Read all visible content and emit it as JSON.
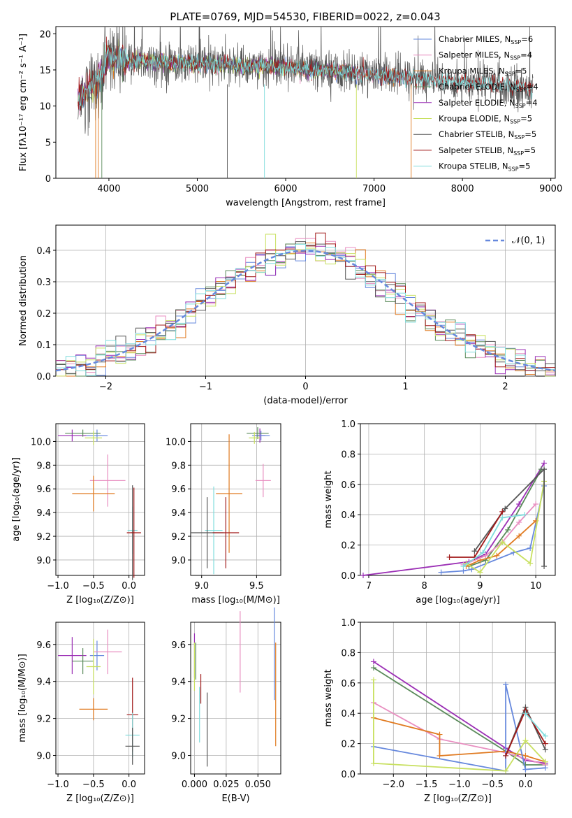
{
  "chart_data": [
    {
      "type": "line",
      "title": "PLATE=0769, MJD=54530, FIBERID=0022, z=0.043",
      "xlabel": "wavelength [Angstrom, rest frame]",
      "ylabel": "Flux [fλ10⁻¹⁷ erg cm⁻² s⁻¹ A⁻¹]",
      "xlim": [
        3400,
        9050
      ],
      "ylim": [
        0,
        21
      ],
      "xticks": [
        4000,
        5000,
        6000,
        7000,
        8000,
        9000
      ],
      "yticks": [
        0,
        5,
        10,
        15,
        20
      ],
      "legend": "top-right",
      "series": [
        {
          "name": "Chabrier MILES, N_SSP=6",
          "color": "#6688dd",
          "range": [
            3650,
            7400
          ]
        },
        {
          "name": "Salpeter MILES, N_SSP=4",
          "color": "#e88ec0",
          "range": [
            3650,
            7400
          ]
        },
        {
          "name": "Kroupa MILES, N_SSP=5",
          "color": "#e07a20",
          "range": [
            3650,
            7400
          ]
        },
        {
          "name": "Chabrier ELODIE, N_SSP=4",
          "color": "#5a8a5a",
          "range": [
            3650,
            6800
          ]
        },
        {
          "name": "Salpeter ELODIE, N_SSP=4",
          "color": "#9b2fb5",
          "range": [
            3650,
            6800
          ]
        },
        {
          "name": "Kroupa ELODIE, N_SSP=5",
          "color": "#c8e060",
          "range": [
            3650,
            6800
          ]
        },
        {
          "name": "Chabrier STELIB, N_SSP=5",
          "color": "#555555",
          "range": [
            3650,
            8800
          ]
        },
        {
          "name": "Salpeter STELIB, N_SSP=5",
          "color": "#a01818",
          "range": [
            3650,
            8800
          ]
        },
        {
          "name": "Kroupa STELIB, N_SSP=5",
          "color": "#7fdcdc",
          "range": [
            3650,
            8800
          ]
        }
      ]
    },
    {
      "type": "line",
      "xlabel": "(data-model)/error",
      "ylabel": "Normed distribution",
      "xlim": [
        -2.5,
        2.5
      ],
      "ylim": [
        0,
        0.48
      ],
      "xticks": [
        -2,
        -1,
        0,
        1,
        2
      ],
      "yticks": [
        0.0,
        0.1,
        0.2,
        0.3,
        0.4
      ],
      "grid": true,
      "legend": "top-right",
      "reference_curve": {
        "name": "𝒩(0, 1)",
        "mean": 0,
        "sigma": 1,
        "color": "#6688dd"
      }
    },
    {
      "type": "scatter",
      "xlabel": "Z [log₁₀(Z/Z⊙)]",
      "ylabel": "age  [log₁₀(age/yr)]",
      "xlim": [
        -1.03,
        0.22
      ],
      "ylim": [
        8.87,
        10.15
      ],
      "xticks": [
        -1.0,
        -0.5,
        0.0
      ],
      "yticks": [
        9.0,
        9.2,
        9.4,
        9.6,
        9.8,
        10.0
      ],
      "grid": true,
      "points": [
        {
          "x": -0.8,
          "y": 10.05,
          "color": "#9b2fb5"
        },
        {
          "x": -0.45,
          "y": 10.05,
          "color": "#6688dd"
        },
        {
          "x": -0.65,
          "y": 10.07,
          "color": "#5a8a5a"
        },
        {
          "x": -0.5,
          "y": 10.03,
          "color": "#c8e060"
        },
        {
          "x": -0.3,
          "y": 9.67,
          "color": "#e88ec0"
        },
        {
          "x": -0.5,
          "y": 9.56,
          "color": "#e07a20"
        },
        {
          "x": 0.05,
          "y": 9.25,
          "color": "#7fdcdc"
        },
        {
          "x": 0.05,
          "y": 9.23,
          "color": "#555555"
        },
        {
          "x": 0.07,
          "y": 9.23,
          "color": "#a01818"
        }
      ]
    },
    {
      "type": "scatter",
      "xlabel": "mass [log₁₀(M/M⊙)]",
      "xlim": [
        8.9,
        9.72
      ],
      "ylim": [
        8.87,
        10.15
      ],
      "xticks": [
        9.0,
        9.5
      ],
      "yticks": [
        9.0,
        9.2,
        9.4,
        9.6,
        9.8,
        10.0
      ],
      "grid": true,
      "points": [
        {
          "x": 9.53,
          "y": 10.05,
          "color": "#9b2fb5"
        },
        {
          "x": 9.54,
          "y": 10.05,
          "color": "#6688dd"
        },
        {
          "x": 9.51,
          "y": 10.07,
          "color": "#5a8a5a"
        },
        {
          "x": 9.48,
          "y": 10.03,
          "color": "#c8e060"
        },
        {
          "x": 9.56,
          "y": 9.67,
          "color": "#e88ec0"
        },
        {
          "x": 9.25,
          "y": 9.56,
          "color": "#e07a20"
        },
        {
          "x": 9.11,
          "y": 9.25,
          "color": "#7fdcdc"
        },
        {
          "x": 9.05,
          "y": 9.23,
          "color": "#555555"
        },
        {
          "x": 9.22,
          "y": 9.23,
          "color": "#a01818"
        }
      ]
    },
    {
      "type": "line",
      "xlabel": "age  [log₁₀(age/yr)]",
      "ylabel": "mass weight",
      "xlim": [
        6.85,
        10.35
      ],
      "ylim": [
        0,
        1.0
      ],
      "xticks": [
        7,
        8,
        9,
        10
      ],
      "yticks": [
        0.0,
        0.2,
        0.4,
        0.6,
        0.8,
        1.0
      ],
      "grid": true,
      "series": [
        {
          "color": "#9b2fb5",
          "x": [
            6.9,
            8.8,
            9.1,
            9.7,
            10.15
          ],
          "y": [
            0.0,
            0.09,
            0.14,
            0.47,
            0.74
          ]
        },
        {
          "color": "#5a8a5a",
          "x": [
            8.8,
            9.1,
            9.5,
            10.1
          ],
          "y": [
            0.06,
            0.1,
            0.3,
            0.7
          ]
        },
        {
          "color": "#6688dd",
          "x": [
            8.3,
            8.7,
            8.85,
            9.6,
            9.9,
            10.15
          ],
          "y": [
            0.02,
            0.03,
            0.04,
            0.15,
            0.18,
            0.59
          ]
        },
        {
          "color": "#e07a20",
          "x": [
            8.75,
            9.0,
            9.3,
            9.7,
            10.0
          ],
          "y": [
            0.06,
            0.1,
            0.13,
            0.26,
            0.36
          ]
        },
        {
          "color": "#e88ec0",
          "x": [
            8.7,
            9.1,
            9.4,
            9.7,
            10.0
          ],
          "y": [
            0.07,
            0.13,
            0.22,
            0.35,
            0.47
          ]
        },
        {
          "color": "#c8e060",
          "x": [
            8.75,
            9.0,
            9.4,
            9.9,
            10.15
          ],
          "y": [
            0.08,
            0.02,
            0.22,
            0.08,
            0.62
          ]
        },
        {
          "color": "#555555",
          "x": [
            8.9,
            9.45,
            10.15,
            10.15
          ],
          "y": [
            0.16,
            0.44,
            0.7,
            0.06
          ]
        },
        {
          "color": "#a01818",
          "x": [
            8.45,
            8.9,
            9.4
          ],
          "y": [
            0.12,
            0.12,
            0.42
          ]
        },
        {
          "color": "#7fdcdc",
          "x": [
            8.7,
            9.05,
            9.4,
            9.8
          ],
          "y": [
            0.06,
            0.15,
            0.38,
            0.4
          ]
        }
      ]
    },
    {
      "type": "scatter",
      "xlabel": "Z [log₁₀(Z/Z⊙)]",
      "ylabel": "mass [log₁₀(M/M⊙)]",
      "xlim": [
        -1.03,
        0.22
      ],
      "ylim": [
        8.9,
        9.72
      ],
      "xticks": [
        -1.0,
        -0.5,
        0.0
      ],
      "yticks": [
        9.0,
        9.2,
        9.4,
        9.6
      ],
      "grid": true,
      "points": [
        {
          "x": -0.8,
          "y": 9.54,
          "color": "#9b2fb5"
        },
        {
          "x": -0.65,
          "y": 9.51,
          "color": "#5a8a5a"
        },
        {
          "x": -0.45,
          "y": 9.54,
          "color": "#6688dd"
        },
        {
          "x": -0.3,
          "y": 9.56,
          "color": "#e88ec0"
        },
        {
          "x": -0.5,
          "y": 9.48,
          "color": "#c8e060"
        },
        {
          "x": -0.5,
          "y": 9.25,
          "color": "#e07a20"
        },
        {
          "x": 0.05,
          "y": 9.22,
          "color": "#a01818"
        },
        {
          "x": 0.05,
          "y": 9.11,
          "color": "#7fdcdc"
        },
        {
          "x": 0.05,
          "y": 9.05,
          "color": "#555555"
        }
      ]
    },
    {
      "type": "scatter",
      "xlabel": "E(B-V)",
      "xlim": [
        -0.003,
        0.068
      ],
      "ylim": [
        8.9,
        9.72
      ],
      "xticks": [
        0.0,
        0.025,
        0.05
      ],
      "yticks": [
        9.0,
        9.2,
        9.4,
        9.6
      ],
      "grid": true,
      "points": [
        {
          "x": 0.0,
          "y": 9.54,
          "color": "#9b2fb5"
        },
        {
          "x": 0.0,
          "y": 9.48,
          "color": "#c8e060"
        },
        {
          "x": 0.001,
          "y": 9.51,
          "color": "#5a8a5a"
        },
        {
          "x": 0.004,
          "y": 9.22,
          "color": "#7fdcdc"
        },
        {
          "x": 0.005,
          "y": 9.36,
          "color": "#a01818"
        },
        {
          "x": 0.01,
          "y": 9.14,
          "color": "#555555"
        },
        {
          "x": 0.036,
          "y": 9.56,
          "color": "#e88ec0"
        },
        {
          "x": 0.063,
          "y": 9.55,
          "color": "#6688dd"
        },
        {
          "x": 0.064,
          "y": 9.33,
          "color": "#e07a20"
        }
      ]
    },
    {
      "type": "line",
      "xlabel": "Z [log₁₀(Z/Z⊙)]",
      "ylabel": "mass weight",
      "xlim": [
        -2.5,
        0.45
      ],
      "ylim": [
        0,
        1.0
      ],
      "xticks": [
        -2.0,
        -1.5,
        -1.0,
        -0.5,
        0.0
      ],
      "yticks": [
        0.0,
        0.2,
        0.4,
        0.6,
        0.8,
        1.0
      ],
      "grid": true,
      "series": [
        {
          "color": "#9b2fb5",
          "x": [
            -2.3,
            -0.3,
            0.0,
            0.3
          ],
          "y": [
            0.74,
            0.17,
            0.09,
            0.07
          ]
        },
        {
          "color": "#5a8a5a",
          "x": [
            -2.3,
            -0.3,
            0.0,
            0.3
          ],
          "y": [
            0.7,
            0.15,
            0.06,
            0.06
          ]
        },
        {
          "color": "#e88ec0",
          "x": [
            -2.3,
            -1.3,
            -0.3,
            0.0,
            0.3
          ],
          "y": [
            0.47,
            0.23,
            0.14,
            0.1,
            0.06
          ]
        },
        {
          "color": "#e07a20",
          "x": [
            -2.3,
            -1.3,
            -1.3,
            -0.3,
            0.0,
            0.3
          ],
          "y": [
            0.37,
            0.26,
            0.12,
            0.15,
            0.12,
            0.08
          ]
        },
        {
          "color": "#6688dd",
          "x": [
            -2.3,
            -0.3,
            -0.3,
            0.0,
            0.3
          ],
          "y": [
            0.18,
            0.02,
            0.59,
            0.03,
            0.04
          ]
        },
        {
          "color": "#c8e060",
          "x": [
            -2.3,
            -2.3,
            -0.3,
            0.0,
            0.3
          ],
          "y": [
            0.62,
            0.07,
            0.02,
            0.22,
            0.08
          ]
        },
        {
          "color": "#555555",
          "x": [
            -0.3,
            0.0,
            0.3
          ],
          "y": [
            0.12,
            0.44,
            0.16
          ]
        },
        {
          "color": "#a01818",
          "x": [
            -0.3,
            0.0,
            0.3
          ],
          "y": [
            0.12,
            0.42,
            0.2
          ]
        },
        {
          "color": "#7fdcdc",
          "x": [
            0.0,
            0.3
          ],
          "y": [
            0.4,
            0.25
          ]
        }
      ]
    }
  ]
}
